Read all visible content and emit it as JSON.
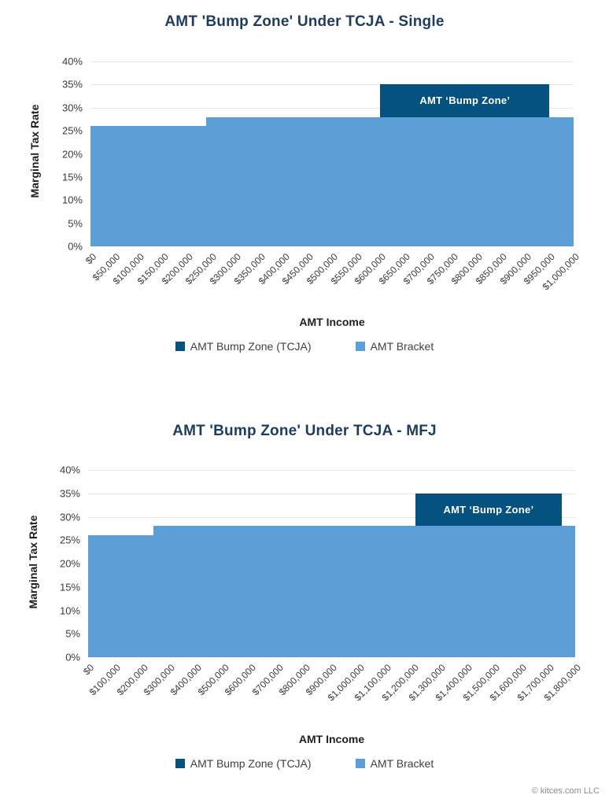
{
  "page": {
    "footer": "© kitces.com LLC"
  },
  "colors": {
    "bracket_fill": "#5B9FD6",
    "bump_fill": "#05517F",
    "title_text": "#1E3C5F",
    "grid_line": "#E8E8E8",
    "tick_text": "#3B3B3B",
    "footer_text": "#8C8C8C"
  },
  "legend": {
    "items": [
      {
        "label": "AMT Bump Zone (TCJA)",
        "color": "#05517F"
      },
      {
        "label": "AMT Bracket",
        "color": "#5B9FD6"
      }
    ]
  },
  "chart_data": [
    {
      "type": "area",
      "title": "AMT 'Bump Zone' Under TCJA - Single",
      "xlabel": "AMT Income",
      "ylabel": "Marginal Tax Rate",
      "x_axis": {
        "min": 0,
        "max": 1000000,
        "tick_step": 50000,
        "tick_format": "usd",
        "tick_rotation": -45
      },
      "y_axis": {
        "min": 0,
        "max": 40,
        "tick_step": 5,
        "tick_format": "percent"
      },
      "grid": "horizontal",
      "legend_position": "bottom",
      "series": [
        {
          "name": "AMT Bracket",
          "type": "step-area",
          "color": "#5B9FD6",
          "points": [
            {
              "x": 0,
              "y": 26
            },
            {
              "x": 240000,
              "y": 28
            },
            {
              "x": 1000000,
              "y": 28
            }
          ]
        },
        {
          "name": "AMT Bump Zone (TCJA)",
          "type": "band",
          "color": "#05517F",
          "label": "AMT ‘Bump Zone’",
          "x_from": 600000,
          "x_to": 950000,
          "y_from": 28,
          "y_to": 35
        }
      ]
    },
    {
      "type": "area",
      "title": "AMT 'Bump Zone' Under TCJA - MFJ",
      "xlabel": "AMT Income",
      "ylabel": "Marginal Tax Rate",
      "x_axis": {
        "min": 0,
        "max": 1800000,
        "tick_step": 100000,
        "tick_format": "usd",
        "tick_rotation": -45
      },
      "y_axis": {
        "min": 0,
        "max": 40,
        "tick_step": 5,
        "tick_format": "percent"
      },
      "grid": "horizontal",
      "legend_position": "bottom",
      "series": [
        {
          "name": "AMT Bracket",
          "type": "step-area",
          "color": "#5B9FD6",
          "points": [
            {
              "x": 0,
              "y": 26
            },
            {
              "x": 240000,
              "y": 28
            },
            {
              "x": 1800000,
              "y": 28
            }
          ]
        },
        {
          "name": "AMT Bump Zone (TCJA)",
          "type": "band",
          "color": "#05517F",
          "label": "AMT ‘Bump Zone’",
          "x_from": 1210000,
          "x_to": 1750000,
          "y_from": 28,
          "y_to": 35
        }
      ]
    }
  ]
}
